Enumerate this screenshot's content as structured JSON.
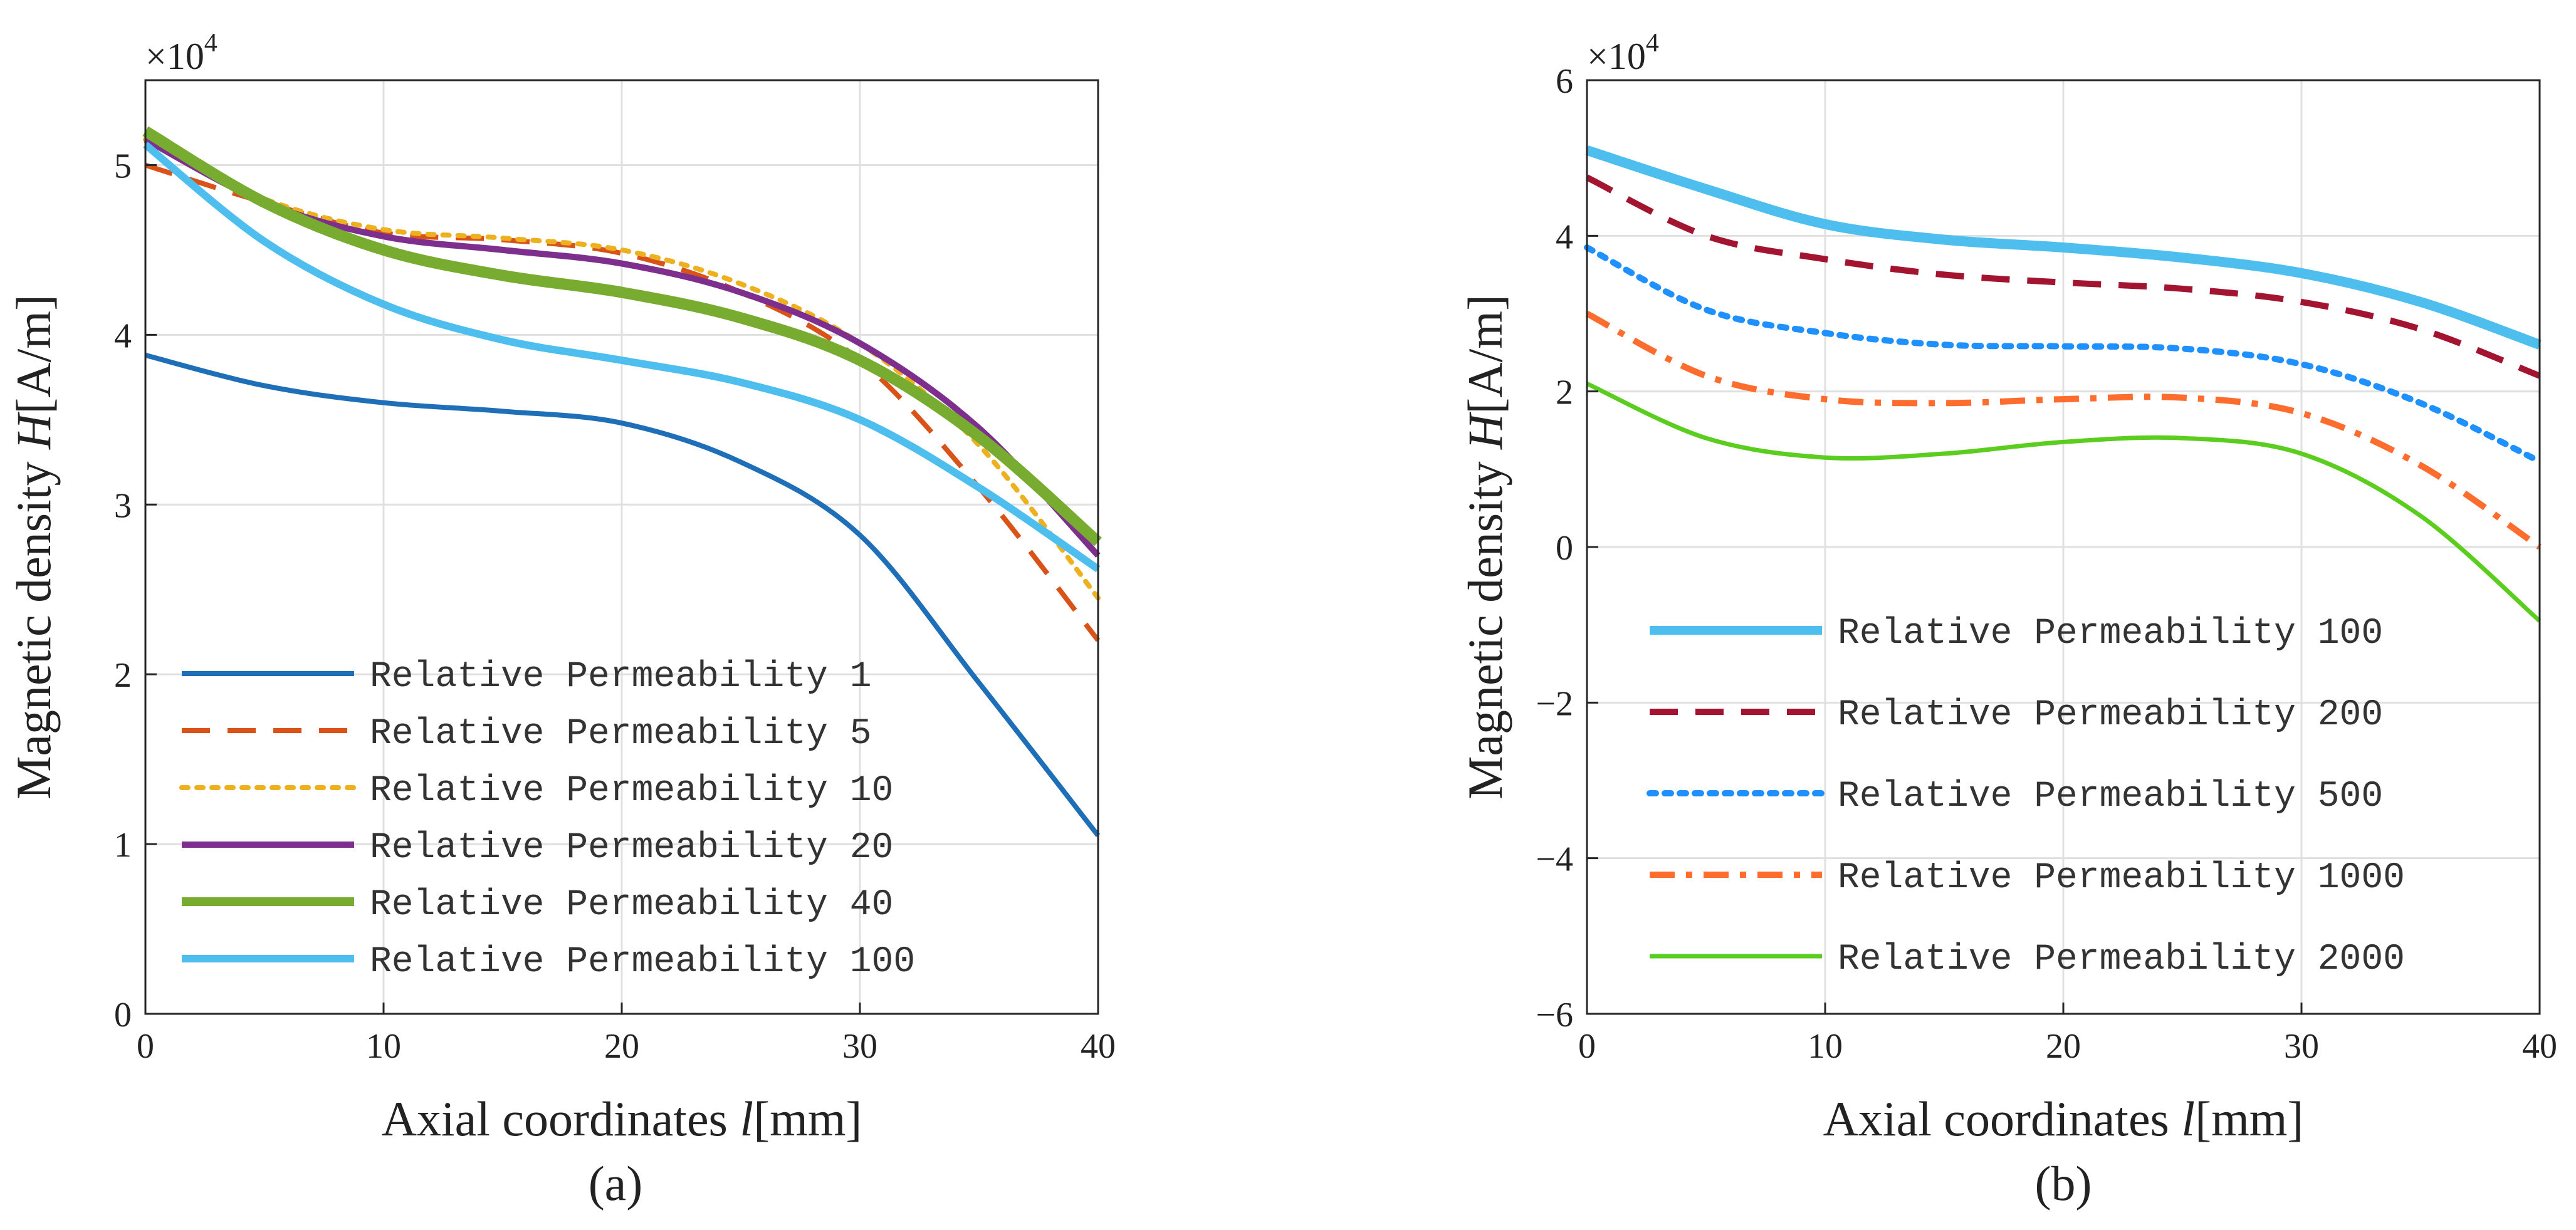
{
  "chart_data": [
    {
      "type": "line",
      "caption": "(a)",
      "xlabel_text": "Axial coordinates ",
      "xlabel_var": "l",
      "xlabel_unit": "[mm]",
      "ylabel_text": "Magnetic density ",
      "ylabel_var": "H",
      "ylabel_unit": "[A/m]",
      "exponent_base": "×10",
      "exponent_power": "4",
      "xlim": [
        0,
        40
      ],
      "ylim": [
        0,
        5.5
      ],
      "xticks": [
        0,
        10,
        20,
        30,
        40
      ],
      "xtick_labels": [
        "0",
        "10",
        "20",
        "30",
        "40"
      ],
      "yticks": [
        0,
        1,
        2,
        3,
        4,
        5
      ],
      "ytick_labels": [
        "0",
        "1",
        "2",
        "3",
        "4",
        "5"
      ],
      "grid": true,
      "legend_position": "bottom-left",
      "series": [
        {
          "name": "Relative Permeability 1",
          "color": "#1f6fb8",
          "style": "solid",
          "width": 8,
          "x": [
            0,
            5,
            10,
            15,
            20,
            25,
            30,
            35,
            40
          ],
          "y": [
            3.88,
            3.7,
            3.6,
            3.55,
            3.48,
            3.25,
            2.82,
            1.95,
            1.05
          ]
        },
        {
          "name": "Relative Permeability 5",
          "color": "#d95319",
          "style": "dashed",
          "width": 8,
          "x": [
            0,
            5,
            10,
            15,
            20,
            25,
            30,
            35,
            40
          ],
          "y": [
            5.0,
            4.78,
            4.6,
            4.56,
            4.48,
            4.25,
            3.85,
            3.1,
            2.2
          ]
        },
        {
          "name": "Relative Permeability 10",
          "color": "#edb120",
          "style": "dotted",
          "width": 8,
          "x": [
            0,
            5,
            10,
            15,
            20,
            25,
            30,
            35,
            40
          ],
          "y": [
            5.15,
            4.8,
            4.62,
            4.57,
            4.5,
            4.3,
            3.95,
            3.35,
            2.45
          ]
        },
        {
          "name": "Relative Permeability 20",
          "color": "#7e2f8e",
          "style": "solid",
          "width": 10,
          "x": [
            0,
            5,
            10,
            15,
            20,
            25,
            30,
            35,
            40
          ],
          "y": [
            5.15,
            4.78,
            4.58,
            4.5,
            4.42,
            4.25,
            3.95,
            3.45,
            2.7
          ]
        },
        {
          "name": "Relative Permeability 40",
          "color": "#77ac30",
          "style": "solid",
          "width": 18,
          "x": [
            0,
            5,
            10,
            15,
            20,
            25,
            30,
            35,
            40
          ],
          "y": [
            5.2,
            4.78,
            4.5,
            4.35,
            4.25,
            4.1,
            3.85,
            3.4,
            2.78
          ]
        },
        {
          "name": "Relative Permeability 100",
          "color": "#4dbeee",
          "style": "solid",
          "width": 12,
          "x": [
            0,
            5,
            10,
            15,
            20,
            25,
            30,
            35,
            40
          ],
          "y": [
            5.12,
            4.55,
            4.18,
            3.97,
            3.85,
            3.72,
            3.5,
            3.1,
            2.62
          ]
        }
      ]
    },
    {
      "type": "line",
      "caption": "(b)",
      "xlabel_text": "Axial coordinates ",
      "xlabel_var": "l",
      "xlabel_unit": "[mm]",
      "ylabel_text": "Magnetic density ",
      "ylabel_var": "H",
      "ylabel_unit": "[A/m]",
      "exponent_base": "×10",
      "exponent_power": "4",
      "xlim": [
        0,
        40
      ],
      "ylim": [
        -6,
        6
      ],
      "xticks": [
        0,
        10,
        20,
        30,
        40
      ],
      "xtick_labels": [
        "0",
        "10",
        "20",
        "30",
        "40"
      ],
      "yticks": [
        -6,
        -4,
        -2,
        0,
        2,
        4,
        6
      ],
      "ytick_labels": [
        "−6",
        "−4",
        "−2",
        "0",
        "2",
        "4",
        "6"
      ],
      "grid": true,
      "legend_position": "bottom-left",
      "series": [
        {
          "name": "Relative Permeability 100",
          "color": "#4dbeee",
          "style": "solid",
          "width": 16,
          "x": [
            0,
            5,
            10,
            15,
            20,
            25,
            30,
            35,
            40
          ],
          "y": [
            5.1,
            4.6,
            4.15,
            3.95,
            3.85,
            3.72,
            3.52,
            3.15,
            2.6
          ]
        },
        {
          "name": "Relative Permeability 200",
          "color": "#a2142f",
          "style": "dashed",
          "width": 10,
          "x": [
            0,
            5,
            10,
            15,
            20,
            25,
            30,
            35,
            40
          ],
          "y": [
            4.75,
            4.0,
            3.7,
            3.5,
            3.4,
            3.32,
            3.15,
            2.8,
            2.2
          ]
        },
        {
          "name": "Relative Permeability 500",
          "color": "#1e90ff",
          "style": "dotted",
          "width": 10,
          "x": [
            0,
            5,
            10,
            15,
            20,
            25,
            30,
            35,
            40
          ],
          "y": [
            3.85,
            3.05,
            2.75,
            2.6,
            2.58,
            2.55,
            2.35,
            1.85,
            1.1
          ]
        },
        {
          "name": "Relative Permeability 1000",
          "color": "#ff6d2e",
          "style": "dashdot",
          "width": 10,
          "x": [
            0,
            5,
            10,
            15,
            20,
            25,
            30,
            35,
            40
          ],
          "y": [
            3.0,
            2.2,
            1.9,
            1.85,
            1.9,
            1.92,
            1.72,
            1.05,
            0.0
          ]
        },
        {
          "name": "Relative Permeability 2000",
          "color": "#5acd1e",
          "style": "solid",
          "width": 7,
          "x": [
            0,
            5,
            10,
            15,
            20,
            25,
            30,
            35,
            40
          ],
          "y": [
            2.1,
            1.4,
            1.15,
            1.2,
            1.35,
            1.4,
            1.2,
            0.4,
            -0.95
          ]
        }
      ]
    }
  ]
}
